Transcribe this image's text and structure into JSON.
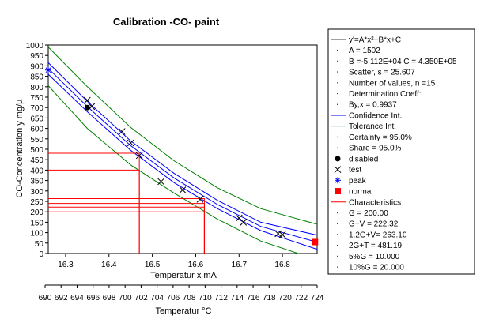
{
  "chart_data": {
    "type": "scatter",
    "title": "Calibration -CO- paint",
    "xlabel": "Temperatur x mA",
    "ylabel": "CO-Concentration y mg/µ",
    "x2label": "Temperatur °C",
    "xlim": [
      16.26,
      16.88
    ],
    "ylim": [
      0,
      1000
    ],
    "x_ticks": [
      16.3,
      16.4,
      16.5,
      16.6,
      16.7,
      16.8
    ],
    "y_ticks": [
      0,
      50,
      100,
      150,
      200,
      250,
      300,
      350,
      400,
      450,
      500,
      550,
      600,
      650,
      700,
      750,
      800,
      850,
      900,
      950,
      1000
    ],
    "x2_ticks": [
      690,
      692,
      694,
      696,
      698,
      700,
      702,
      704,
      706,
      708,
      710,
      712,
      714,
      716,
      718,
      720,
      722,
      724
    ],
    "grid": false,
    "colors": {
      "fit": "#0000ff",
      "confidence": "#0000ff",
      "tolerance": "#008000",
      "characteristics": "#ff0000",
      "points": "#000000"
    },
    "fit_coefficients": {
      "A": 1502,
      "B": -51120,
      "C": 435000
    },
    "series": [
      {
        "name": "test",
        "marker": "x",
        "points": [
          [
            16.35,
            735
          ],
          [
            16.36,
            705
          ],
          [
            16.43,
            585
          ],
          [
            16.45,
            530
          ],
          [
            16.47,
            470
          ],
          [
            16.52,
            345
          ],
          [
            16.57,
            305
          ],
          [
            16.61,
            260
          ],
          [
            16.7,
            170
          ],
          [
            16.71,
            150
          ],
          [
            16.79,
            95
          ],
          [
            16.8,
            90
          ]
        ]
      },
      {
        "name": "peak",
        "marker": "star",
        "points": [
          [
            16.26,
            880
          ]
        ]
      },
      {
        "name": "disabled",
        "marker": "dot",
        "points": [
          [
            16.35,
            700
          ]
        ]
      },
      {
        "name": "normal",
        "marker": "square",
        "points": [
          [
            16.875,
            55
          ]
        ]
      }
    ],
    "confidence_band": [
      {
        "x": [
          16.26,
          16.35,
          16.45,
          16.55,
          16.65,
          16.75,
          16.88
        ],
        "y": [
          915,
          730,
          540,
          385,
          255,
          150,
          88
        ]
      },
      {
        "x": [
          16.26,
          16.35,
          16.45,
          16.55,
          16.65,
          16.75,
          16.88
        ],
        "y": [
          860,
          680,
          495,
          340,
          215,
          110,
          20
        ]
      }
    ],
    "tolerance_band": [
      {
        "x": [
          16.26,
          16.35,
          16.45,
          16.55,
          16.65,
          16.75,
          16.88
        ],
        "y": [
          990,
          800,
          605,
          445,
          315,
          215,
          140
        ]
      },
      {
        "x": [
          16.26,
          16.35,
          16.45,
          16.55,
          16.65,
          16.75,
          16.88
        ],
        "y": [
          805,
          600,
          425,
          290,
          165,
          60,
          -30
        ]
      }
    ],
    "characteristics": [
      {
        "y": 481.19,
        "x_end": 16.47
      },
      {
        "y": 400,
        "x_end": 16.47
      },
      {
        "y": 263.1,
        "x_end": 16.62
      },
      {
        "y": 240,
        "x_end": 16.62
      },
      {
        "y": 222.32,
        "x_end": 16.62
      },
      {
        "y": 200,
        "x_end": 16.62
      }
    ],
    "legend_position": "right",
    "legend": [
      {
        "text": "y'=A*x²+B*x+C",
        "kind": "line",
        "color": "#000000"
      },
      {
        "text": "A = 1502",
        "kind": "dot"
      },
      {
        "text": "B =-5.112E+04 C = 4.350E+05",
        "kind": "dot"
      },
      {
        "text": "Scatter, s = 25.607",
        "kind": "dot"
      },
      {
        "text": "Number of values, n =15",
        "kind": "dot"
      },
      {
        "text": "Determination Coeff:",
        "kind": "dot"
      },
      {
        "text": "By,x = 0.9937",
        "kind": "dot"
      },
      {
        "text": "Confidence Int.",
        "kind": "line",
        "color": "#0000ff"
      },
      {
        "text": "Tolerance Int.",
        "kind": "line",
        "color": "#008000"
      },
      {
        "text": "Certainty = 95.0%",
        "kind": "dot"
      },
      {
        "text": "Share = 95.0%",
        "kind": "dot"
      },
      {
        "text": "disabled",
        "kind": "filled-dot"
      },
      {
        "text": "test",
        "kind": "x"
      },
      {
        "text": "peak",
        "kind": "star"
      },
      {
        "text": "normal",
        "kind": "square"
      },
      {
        "text": "Characteristics",
        "kind": "line",
        "color": "#ff0000"
      },
      {
        "text": "G     = 200.00",
        "kind": "dot"
      },
      {
        "text": "G+V    = 222.32",
        "kind": "dot"
      },
      {
        "text": "1.2G+V= 263.10",
        "kind": "dot"
      },
      {
        "text": "2G+T  = 481.19",
        "kind": "dot"
      },
      {
        "text": "5%G   = 10.000",
        "kind": "dot"
      },
      {
        "text": "10%G  = 20.000",
        "kind": "dot"
      }
    ]
  }
}
